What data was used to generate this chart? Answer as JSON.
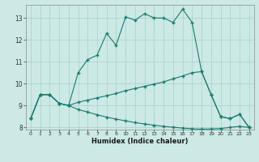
{
  "xlabel": "Humidex (Indice chaleur)",
  "background_color": "#cce9e5",
  "grid_color": "#a8d0cc",
  "line_color": "#1a7a6e",
  "xlim": [
    -0.5,
    23.5
  ],
  "ylim": [
    7.9,
    13.6
  ],
  "yticks": [
    8,
    9,
    10,
    11,
    12,
    13
  ],
  "xticks": [
    0,
    1,
    2,
    3,
    4,
    5,
    6,
    7,
    8,
    9,
    10,
    11,
    12,
    13,
    14,
    15,
    16,
    17,
    18,
    19,
    20,
    21,
    22,
    23
  ],
  "series1_x": [
    0,
    1,
    2,
    3,
    4,
    5,
    6,
    7,
    8,
    9,
    10,
    11,
    12,
    13,
    14,
    15,
    16,
    17,
    18,
    19,
    20,
    21,
    22,
    23
  ],
  "series1_y": [
    8.4,
    9.5,
    9.5,
    9.1,
    9.0,
    10.5,
    11.1,
    11.3,
    12.3,
    11.75,
    13.05,
    12.9,
    13.2,
    13.0,
    13.0,
    12.8,
    13.4,
    12.8,
    10.55,
    9.5,
    8.5,
    8.4,
    8.6,
    8.0
  ],
  "series2_x": [
    0,
    1,
    2,
    3,
    4,
    5,
    6,
    7,
    8,
    9,
    10,
    11,
    12,
    13,
    14,
    15,
    16,
    17,
    18,
    19,
    20,
    21,
    22,
    23
  ],
  "series2_y": [
    8.4,
    9.5,
    9.5,
    9.1,
    9.0,
    9.15,
    9.25,
    9.35,
    9.45,
    9.55,
    9.68,
    9.78,
    9.88,
    9.98,
    10.08,
    10.22,
    10.35,
    10.5,
    10.55,
    9.5,
    8.5,
    8.4,
    8.6,
    8.0
  ],
  "series3_x": [
    0,
    1,
    2,
    3,
    4,
    5,
    6,
    7,
    8,
    9,
    10,
    11,
    12,
    13,
    14,
    15,
    16,
    17,
    18,
    19,
    20,
    21,
    22,
    23
  ],
  "series3_y": [
    8.4,
    9.5,
    9.5,
    9.1,
    9.0,
    8.82,
    8.7,
    8.58,
    8.47,
    8.38,
    8.3,
    8.22,
    8.16,
    8.1,
    8.05,
    8.01,
    7.97,
    7.94,
    7.92,
    7.93,
    7.95,
    8.0,
    8.05,
    8.0
  ]
}
